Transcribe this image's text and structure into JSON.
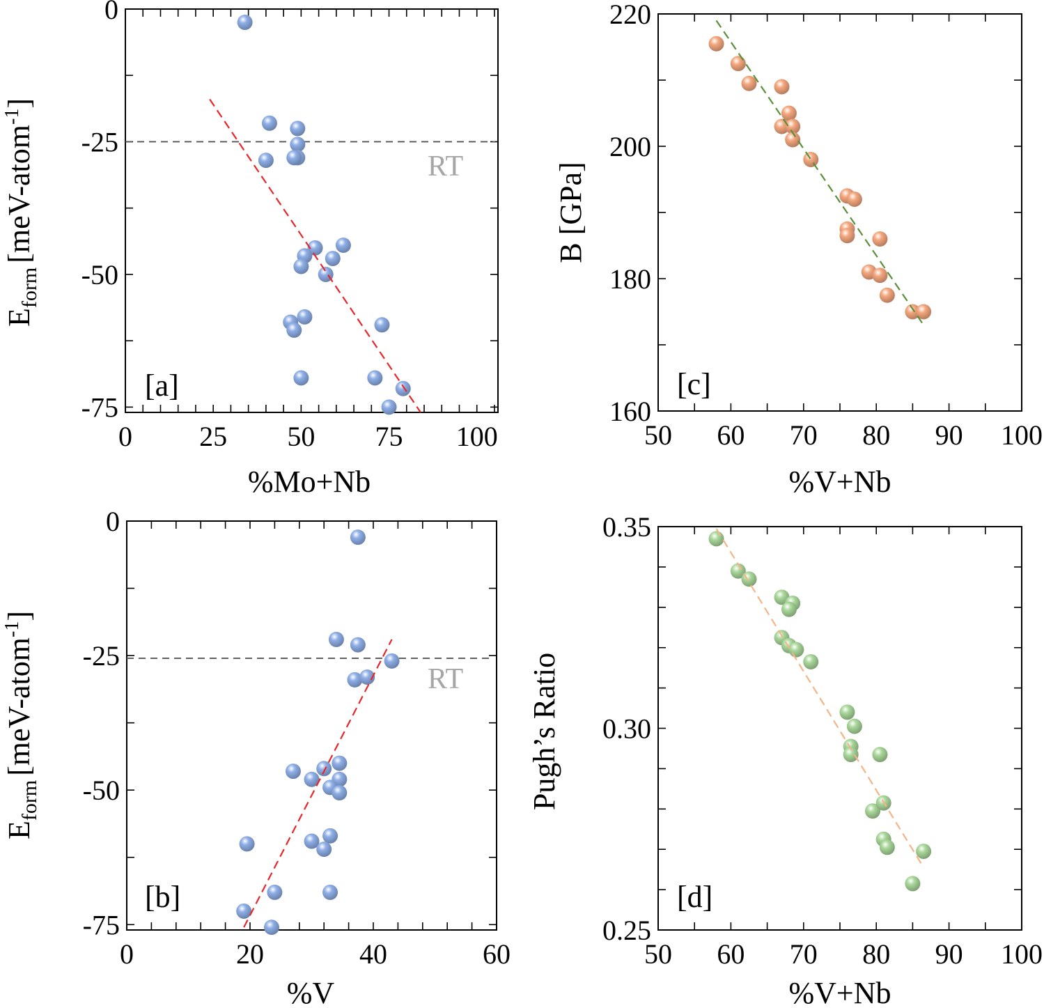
{
  "figure_title": "",
  "chart_data": [
    {
      "id": "a",
      "type": "scatter",
      "panel_label": "[a]",
      "title": "",
      "xlabel": "%Mo+Nb",
      "ylabel": "E",
      "ylabel_sub": "form",
      "ylabel_rest": "[meV-atom",
      "ylabel_sup": "-1",
      "ylabel_end": "]",
      "xlim": [
        0,
        106
      ],
      "ylim": [
        -76,
        0
      ],
      "xticks": [
        0,
        25,
        50,
        75,
        100
      ],
      "xtick_labels": [
        "0",
        "25",
        "50",
        "75",
        "100"
      ],
      "yticks": [
        0,
        -25,
        -50,
        -75
      ],
      "ytick_labels": [
        "0",
        "-25",
        "-50",
        "-75"
      ],
      "x_minor_step": 5,
      "y_minor_step": 12.5,
      "grid": false,
      "marker_color": "#8eaee6",
      "points": {
        "x": [
          34,
          41,
          49,
          49,
          49,
          40,
          48,
          54,
          51,
          59,
          62,
          50,
          57,
          47,
          48,
          51,
          50,
          73,
          71,
          79,
          75
        ],
        "y": [
          -2.5,
          -21.5,
          -22.5,
          -25.5,
          -28,
          -28.5,
          -28,
          -45,
          -46.5,
          -47,
          -44.5,
          -48.5,
          -50,
          -59,
          -60.5,
          -58,
          -69.5,
          -59.5,
          -69.5,
          -71.5,
          -75
        ]
      },
      "trend_line": {
        "x": [
          24,
          84
        ],
        "y": [
          -17,
          -76
        ],
        "color": "#e8262a"
      },
      "reference_line": {
        "y": -25,
        "label": "RT",
        "color": "#555555"
      }
    },
    {
      "id": "b",
      "type": "scatter",
      "panel_label": "[b]",
      "title": "",
      "xlabel": "%V",
      "ylabel": "E",
      "ylabel_sub": "form",
      "ylabel_rest": "[meV-atom",
      "ylabel_sup": "-1",
      "ylabel_end": "]",
      "xlim": [
        0,
        60
      ],
      "ylim": [
        -76,
        0
      ],
      "xticks": [
        0,
        20,
        40,
        60
      ],
      "xtick_labels": [
        "0",
        "20",
        "40",
        "60"
      ],
      "yticks": [
        0,
        -25,
        -50,
        -75
      ],
      "ytick_labels": [
        "0",
        "-25",
        "-50",
        "-75"
      ],
      "x_minor_step": 4,
      "y_minor_step": 12.5,
      "grid": false,
      "marker_color": "#8eaee6",
      "points": {
        "x": [
          37.5,
          34,
          37.5,
          43,
          37,
          39,
          34.5,
          32,
          34.5,
          27,
          30,
          33,
          34.5,
          19.5,
          30,
          33,
          32,
          33,
          19,
          24,
          23.5
        ],
        "y": [
          -3,
          -22,
          -23,
          -26,
          -29.5,
          -29,
          -45,
          -46,
          -48,
          -46.5,
          -48,
          -49.5,
          -50.5,
          -60,
          -59.5,
          -58.5,
          -61,
          -69,
          -72.5,
          -69,
          -75.5
        ]
      },
      "trend_line": {
        "x": [
          19,
          43
        ],
        "y": [
          -75.5,
          -22
        ],
        "color": "#e8262a"
      },
      "reference_line": {
        "y": -25.5,
        "label": "RT",
        "color": "#555555"
      }
    },
    {
      "id": "c",
      "type": "scatter",
      "panel_label": "[c]",
      "title": "",
      "xlabel": "%V+Nb",
      "ylabel": "B [GPa]",
      "xlim": [
        50,
        100
      ],
      "ylim": [
        160,
        220
      ],
      "xticks": [
        50,
        60,
        70,
        80,
        90,
        100
      ],
      "xtick_labels": [
        "50",
        "60",
        "70",
        "80",
        "90",
        "100"
      ],
      "yticks": [
        160,
        180,
        200,
        220
      ],
      "ytick_labels": [
        "160",
        "180",
        "200",
        "220"
      ],
      "x_minor_step": 5,
      "y_minor_step": 10,
      "grid": false,
      "marker_color": "#f4a77e",
      "points": {
        "x": [
          58,
          61,
          62.5,
          67,
          68,
          67,
          68.5,
          68.5,
          71,
          76,
          77,
          76,
          76,
          79,
          80.5,
          80.5,
          81.5,
          85,
          86.5
        ],
        "y": [
          215.5,
          212.5,
          209.5,
          209,
          205,
          203,
          203,
          201,
          198,
          192.5,
          192,
          187.5,
          186.5,
          181,
          186,
          180.5,
          177.5,
          175,
          175
        ]
      },
      "trend_line": {
        "x": [
          58,
          86.5
        ],
        "y": [
          219,
          173
        ],
        "color": "#5a8f3a"
      }
    },
    {
      "id": "d",
      "type": "scatter",
      "panel_label": "[d]",
      "title": "",
      "xlabel": "%V+Nb",
      "ylabel": "Pugh’s Ratio",
      "xlim": [
        50,
        100
      ],
      "ylim": [
        0.25,
        0.35
      ],
      "xticks": [
        50,
        60,
        70,
        80,
        90,
        100
      ],
      "xtick_labels": [
        "50",
        "60",
        "70",
        "80",
        "90",
        "100"
      ],
      "yticks": [
        0.25,
        0.3,
        0.35
      ],
      "ytick_labels": [
        "0.25",
        "0.30",
        "0.35"
      ],
      "x_minor_step": 5,
      "y_minor_step": 0.01,
      "grid": false,
      "marker_color": "#a9d79a",
      "points": {
        "x": [
          58,
          61,
          62.5,
          67,
          68.5,
          68,
          67,
          68,
          69,
          71,
          76,
          77,
          76.5,
          76.5,
          80.5,
          79.5,
          81,
          81,
          81.5,
          86.5,
          85
        ],
        "y": [
          0.347,
          0.339,
          0.337,
          0.3325,
          0.331,
          0.3295,
          0.3225,
          0.3205,
          0.3195,
          0.3165,
          0.304,
          0.3005,
          0.2955,
          0.2935,
          0.2935,
          0.2795,
          0.2815,
          0.2725,
          0.2705,
          0.2695,
          0.2615
        ]
      },
      "trend_line": {
        "x": [
          58,
          86.5
        ],
        "y": [
          0.3495,
          0.2655
        ],
        "color": "#f5b488"
      }
    }
  ]
}
